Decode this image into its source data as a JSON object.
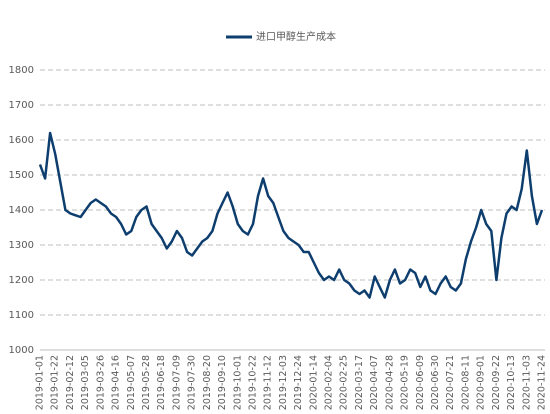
{
  "chart_data": {
    "type": "line",
    "categories": [
      "2019-01-01",
      null,
      null,
      "2019-01-22",
      null,
      null,
      "2019-02-12",
      null,
      null,
      "2019-03-05",
      null,
      null,
      "2019-03-26",
      null,
      null,
      "2019-04-16",
      null,
      null,
      "2019-05-07",
      null,
      null,
      "2019-05-28",
      null,
      null,
      "2019-06-18",
      null,
      null,
      "2019-07-09",
      null,
      null,
      "2019-07-30",
      null,
      null,
      "2019-08-20",
      null,
      null,
      "2019-09-10",
      null,
      null,
      "2019-10-01",
      null,
      null,
      "2019-10-22",
      null,
      null,
      "2019-11-12",
      null,
      null,
      "2019-12-03",
      null,
      null,
      "2019-12-24",
      null,
      null,
      "2020-01-14",
      null,
      null,
      "2020-02-04",
      null,
      null,
      "2020-02-25",
      null,
      null,
      "2020-03-17",
      null,
      null,
      "2020-04-07",
      null,
      null,
      "2020-04-28",
      null,
      null,
      "2020-05-19",
      null,
      null,
      "2020-06-09",
      null,
      null,
      "2020-06-30",
      null,
      null,
      "2020-07-21",
      null,
      null,
      "2020-08-11",
      null,
      null,
      "2020-09-01",
      null,
      null,
      "2020-09-22",
      null,
      null,
      "2020-10-13",
      null,
      null,
      "2020-11-03",
      null,
      null,
      "2020-11-24"
    ],
    "series": [
      {
        "name": "进口甲醇生产成本",
        "color": "#0e3e6e",
        "values": [
          1530,
          1490,
          1620,
          1560,
          1480,
          1400,
          1390,
          1385,
          1380,
          1400,
          1420,
          1430,
          1420,
          1410,
          1390,
          1380,
          1360,
          1330,
          1340,
          1380,
          1400,
          1410,
          1360,
          1340,
          1320,
          1290,
          1310,
          1340,
          1320,
          1280,
          1270,
          1290,
          1310,
          1320,
          1340,
          1390,
          1420,
          1450,
          1410,
          1360,
          1340,
          1330,
          1360,
          1440,
          1490,
          1440,
          1420,
          1380,
          1340,
          1320,
          1310,
          1300,
          1280,
          1280,
          1250,
          1220,
          1200,
          1210,
          1200,
          1230,
          1200,
          1190,
          1170,
          1160,
          1170,
          1150,
          1210,
          1180,
          1150,
          1200,
          1230,
          1190,
          1200,
          1230,
          1220,
          1180,
          1210,
          1170,
          1160,
          1190,
          1210,
          1180,
          1170,
          1190,
          1260,
          1310,
          1350,
          1400,
          1360,
          1340,
          1200,
          1320,
          1390,
          1410,
          1400,
          1460,
          1570,
          1440,
          1360,
          1400
        ]
      }
    ],
    "ylim": [
      1000,
      1800
    ],
    "yticks": [
      1000,
      1100,
      1200,
      1300,
      1400,
      1500,
      1600,
      1700,
      1800
    ],
    "grid": true
  }
}
